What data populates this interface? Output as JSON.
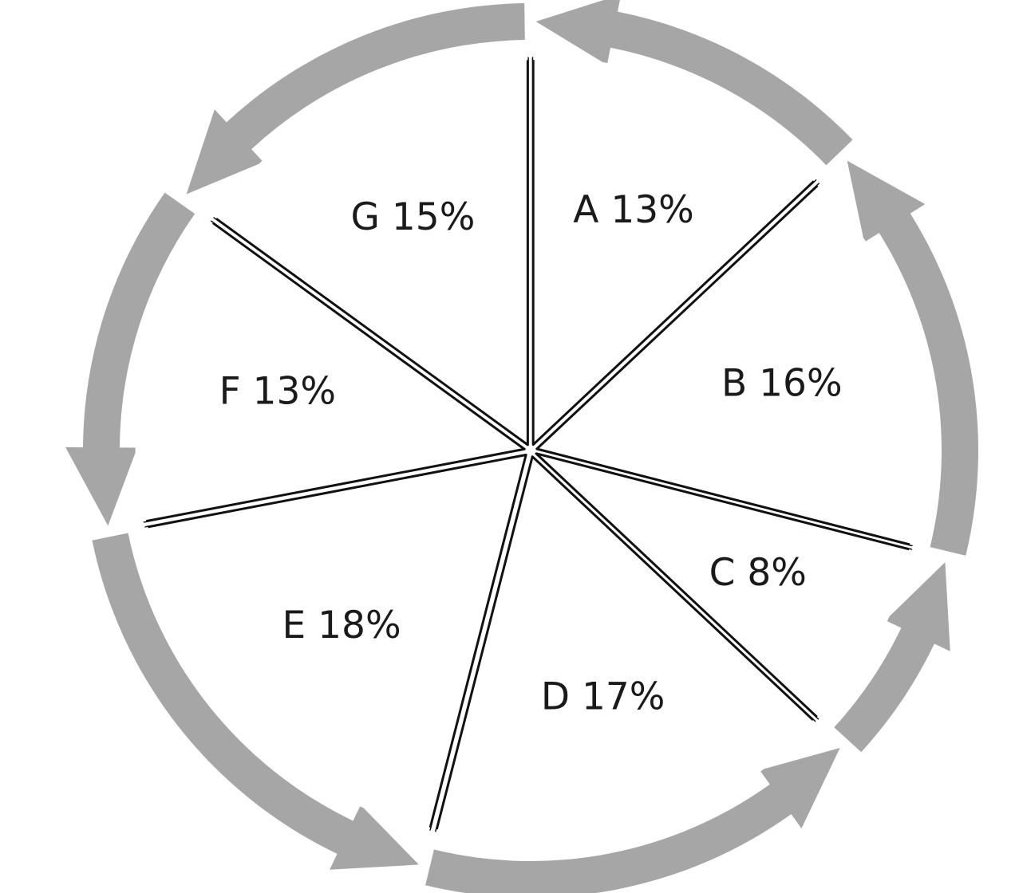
{
  "chart_data": {
    "type": "pie",
    "title": "",
    "slices": [
      {
        "label": "A",
        "value": 13,
        "display": "A 13%"
      },
      {
        "label": "B",
        "value": 16,
        "display": "B 16%"
      },
      {
        "label": "C",
        "value": 8,
        "display": "C 8%"
      },
      {
        "label": "D",
        "value": 17,
        "display": "D 17%"
      },
      {
        "label": "E",
        "value": 18,
        "display": "E 18%"
      },
      {
        "label": "F",
        "value": 13,
        "display": "F 13%"
      },
      {
        "label": "G",
        "value": 15,
        "display": "G 15%"
      }
    ],
    "unit": "%",
    "legend": "none",
    "arrows": "counter-clockwise"
  },
  "colors": {
    "background": "#ffffff",
    "slice_fill": "#ffffff",
    "slice_stroke": "#111111",
    "arrow": "#a6a6a6",
    "text": "#1a1a1a"
  }
}
